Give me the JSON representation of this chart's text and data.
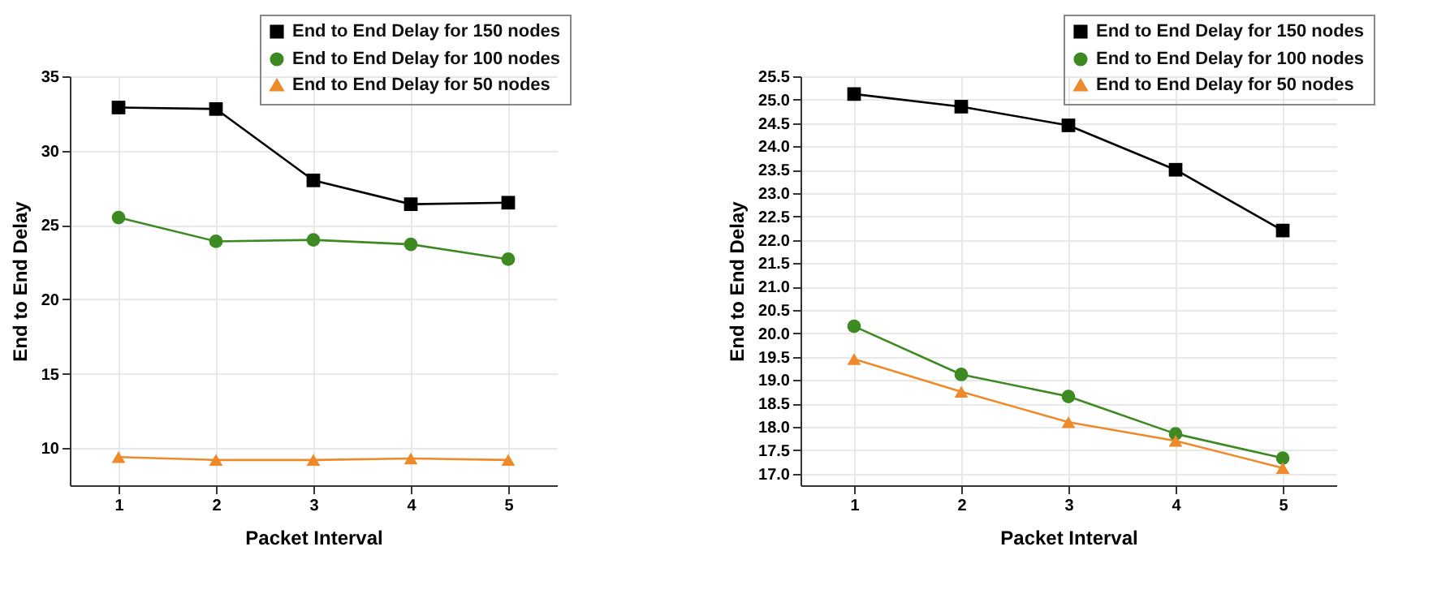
{
  "chart_data": [
    {
      "type": "line",
      "xlabel": "Packet Interval",
      "ylabel": "End to End Delay",
      "x": [
        1,
        2,
        3,
        4,
        5
      ],
      "xlim": [
        0.5,
        5.5
      ],
      "xticks": [
        1,
        2,
        3,
        4,
        5
      ],
      "ylim": [
        7.5,
        35
      ],
      "yticks": [
        10,
        15,
        20,
        25,
        30,
        35
      ],
      "grid": true,
      "legend": "top right",
      "series": [
        {
          "name": "End to End Delay for 150 nodes",
          "color": "#000000",
          "marker": "square",
          "values": [
            32.9,
            32.8,
            28.0,
            26.4,
            26.5
          ]
        },
        {
          "name": "End to End Delay for 100 nodes",
          "color": "#3d8a23",
          "marker": "circle",
          "values": [
            25.5,
            23.9,
            24.0,
            23.7,
            22.7
          ]
        },
        {
          "name": "End to End Delay for 50 nodes",
          "color": "#ee8a2a",
          "marker": "triangle",
          "values": [
            9.4,
            9.2,
            9.2,
            9.3,
            9.2
          ]
        }
      ]
    },
    {
      "type": "line",
      "xlabel": "Packet Interval",
      "ylabel": "End to End Delay",
      "x": [
        1,
        2,
        3,
        4,
        5
      ],
      "xlim": [
        0.5,
        5.5
      ],
      "xticks": [
        1,
        2,
        3,
        4,
        5
      ],
      "ylim": [
        16.75,
        25.5
      ],
      "yticks": [
        {
          "value": 17,
          "label": "17.0"
        },
        17.5,
        {
          "value": 18,
          "label": "18.0"
        },
        18.5,
        {
          "value": 19,
          "label": "19.0"
        },
        19.5,
        {
          "value": 20,
          "label": "20.0"
        },
        20.5,
        {
          "value": 21,
          "label": "21.0"
        },
        21.5,
        {
          "value": 22,
          "label": "22.0"
        },
        22.5,
        {
          "value": 23,
          "label": "23.0"
        },
        23.5,
        {
          "value": 24,
          "label": "24.0"
        },
        24.5,
        {
          "value": 25,
          "label": "25.0"
        },
        25.5
      ],
      "grid": true,
      "legend": "top right",
      "series": [
        {
          "name": "End to End Delay for 150 nodes",
          "color": "#000000",
          "marker": "square",
          "values": [
            25.12,
            24.85,
            24.45,
            23.5,
            22.2
          ]
        },
        {
          "name": "End to End Delay for 100 nodes",
          "color": "#3d8a23",
          "marker": "circle",
          "values": [
            20.15,
            19.12,
            18.65,
            17.85,
            17.33
          ]
        },
        {
          "name": "End to End Delay for 50 nodes",
          "color": "#ee8a2a",
          "marker": "triangle",
          "values": [
            19.45,
            18.75,
            18.1,
            17.7,
            17.12
          ]
        }
      ]
    }
  ]
}
